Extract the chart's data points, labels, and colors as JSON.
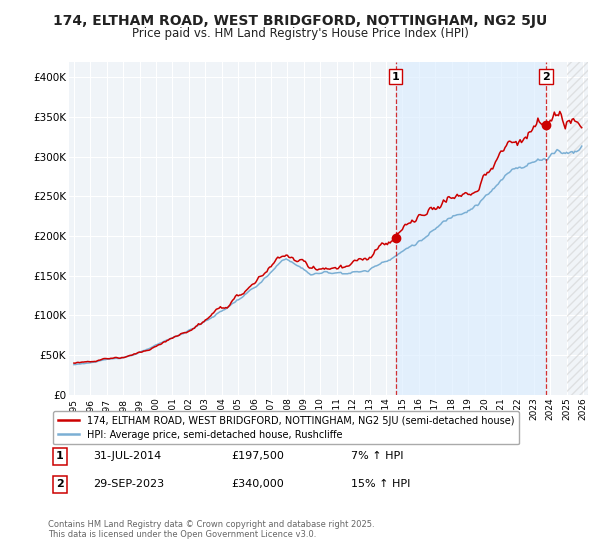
{
  "title": "174, ELTHAM ROAD, WEST BRIDGFORD, NOTTINGHAM, NG2 5JU",
  "subtitle": "Price paid vs. HM Land Registry's House Price Index (HPI)",
  "ylim": [
    0,
    420000
  ],
  "yticks": [
    0,
    50000,
    100000,
    150000,
    200000,
    250000,
    300000,
    350000,
    400000
  ],
  "ytick_labels": [
    "£0",
    "£50K",
    "£100K",
    "£150K",
    "£200K",
    "£250K",
    "£300K",
    "£350K",
    "£400K"
  ],
  "background_color": "#ffffff",
  "plot_bg_color": "#f0f4f8",
  "grid_color": "#ffffff",
  "red_line_color": "#cc0000",
  "blue_line_color": "#7bafd4",
  "blue_shade_color": "#ddeeff",
  "hatch_color": "#cccccc",
  "sale1_year": 2014.58,
  "sale2_year": 2023.75,
  "future_year": 2025.0,
  "xmin": 1994.7,
  "xmax": 2026.3,
  "annotation1": {
    "label": "1",
    "date": "31-JUL-2014",
    "price": "£197,500",
    "note": "7% ↑ HPI"
  },
  "annotation2": {
    "label": "2",
    "date": "29-SEP-2023",
    "price": "£340,000",
    "note": "15% ↑ HPI"
  },
  "legend1": "174, ELTHAM ROAD, WEST BRIDGFORD, NOTTINGHAM, NG2 5JU (semi-detached house)",
  "legend2": "HPI: Average price, semi-detached house, Rushcliffe",
  "footer": "Contains HM Land Registry data © Crown copyright and database right 2025.\nThis data is licensed under the Open Government Licence v3.0."
}
